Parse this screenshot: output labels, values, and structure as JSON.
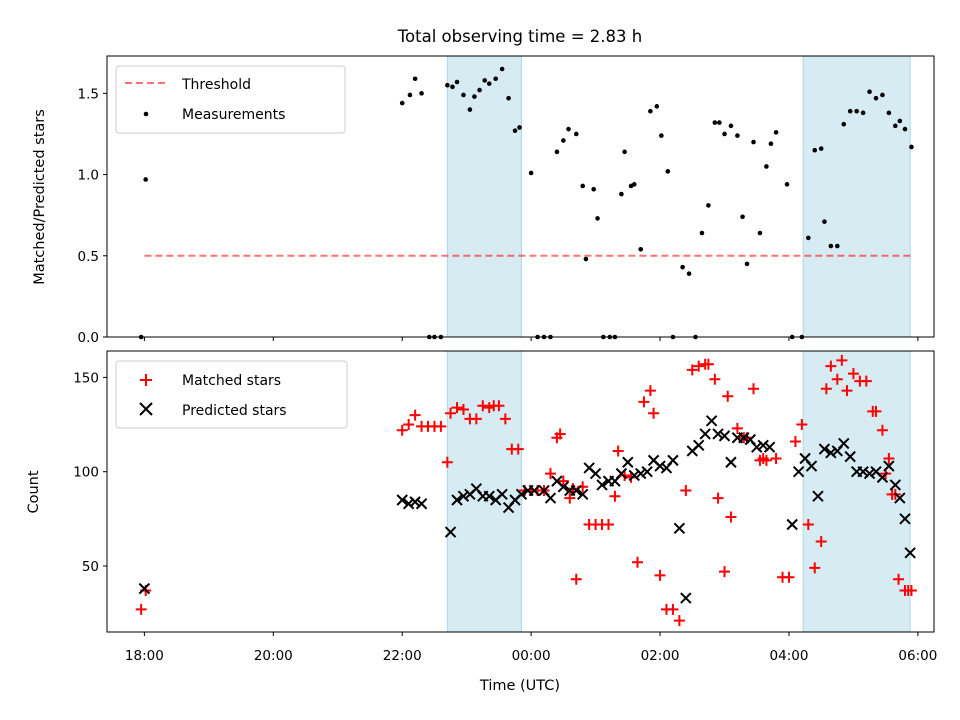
{
  "figure": {
    "title": "Total observing time = 2.83 h",
    "xlabel": "Time (UTC)",
    "x_tick_labels": [
      "18:00",
      "20:00",
      "22:00",
      "00:00",
      "02:00",
      "04:00",
      "06:00"
    ],
    "x_tick_hours": [
      0,
      2,
      4,
      6,
      8,
      10,
      12
    ],
    "x_unit_note": "hours since 18:00 UTC",
    "xlim_hours": [
      -0.58,
      12.25
    ],
    "shaded_spans_hours": [
      [
        4.7,
        5.85
      ],
      [
        10.22,
        11.88
      ]
    ],
    "shade_color": "#add8e6"
  },
  "chart_data": [
    {
      "type": "scatter",
      "ylabel": "Matched/Predicted stars",
      "ylim": [
        0,
        1.73
      ],
      "y_ticks": [
        0,
        0.5,
        1,
        1.5
      ],
      "y_tick_labels": [
        "0.0",
        "0.5",
        "1.0",
        "1.5"
      ],
      "legend": {
        "placement": "upper-left",
        "entries": [
          "Threshold",
          "Measurements"
        ]
      },
      "threshold": {
        "name": "Threshold",
        "value": 0.5,
        "x_range_hours": [
          0,
          11.9
        ],
        "color": "#ff0000",
        "style": "dashed"
      },
      "series": [
        {
          "name": "Measurements",
          "marker": "dot",
          "color": "#000000",
          "x_hours": [
            -0.05,
            0.02,
            4.0,
            4.12,
            4.2,
            4.3,
            4.42,
            4.5,
            4.6,
            4.7,
            4.78,
            4.85,
            4.95,
            5.05,
            5.12,
            5.2,
            5.28,
            5.35,
            5.45,
            5.55,
            5.65,
            5.75,
            5.82,
            6.0,
            6.1,
            6.2,
            6.3,
            6.4,
            6.5,
            6.58,
            6.7,
            6.8,
            6.85,
            6.97,
            7.03,
            7.12,
            7.22,
            7.3,
            7.4,
            7.45,
            7.55,
            7.6,
            7.7,
            7.85,
            7.95,
            8.02,
            8.12,
            8.2,
            8.35,
            8.45,
            8.55,
            8.65,
            8.75,
            8.85,
            8.92,
            9.0,
            9.1,
            9.2,
            9.28,
            9.35,
            9.45,
            9.55,
            9.65,
            9.72,
            9.8,
            9.97,
            10.05,
            10.2,
            10.3,
            10.4,
            10.5,
            10.55,
            10.65,
            10.75,
            10.85,
            10.95,
            11.05,
            11.15,
            11.25,
            11.35,
            11.45,
            11.55,
            11.65,
            11.72,
            11.8,
            11.9
          ],
          "y": [
            0.0,
            0.97,
            1.44,
            1.49,
            1.59,
            1.5,
            0.0,
            0.0,
            0.0,
            1.55,
            1.54,
            1.57,
            1.49,
            1.4,
            1.48,
            1.52,
            1.58,
            1.56,
            1.59,
            1.65,
            1.47,
            1.27,
            1.29,
            1.01,
            0.0,
            0.0,
            0.0,
            1.14,
            1.21,
            1.28,
            1.25,
            0.93,
            0.48,
            0.91,
            0.73,
            0.0,
            0.0,
            0.0,
            0.88,
            1.14,
            0.93,
            0.94,
            0.54,
            1.39,
            1.42,
            1.24,
            1.02,
            0.0,
            0.43,
            0.39,
            0.0,
            0.64,
            0.81,
            1.32,
            1.32,
            1.25,
            1.3,
            1.24,
            0.74,
            0.45,
            1.2,
            0.64,
            1.05,
            1.19,
            1.26,
            0.94,
            0.0,
            0.0,
            0.61,
            1.15,
            1.16,
            0.71,
            0.56,
            0.56,
            1.31,
            1.39,
            1.39,
            1.38,
            1.51,
            1.47,
            1.49,
            1.38,
            1.3,
            1.33,
            1.28,
            1.17
          ]
        }
      ]
    },
    {
      "type": "scatter",
      "xlabel": "Time (UTC)",
      "ylabel": "Count",
      "ylim": [
        15,
        164
      ],
      "y_ticks": [
        50,
        100,
        150
      ],
      "y_tick_labels": [
        "50",
        "100",
        "150"
      ],
      "legend": {
        "placement": "upper-left",
        "entries": [
          "Matched stars",
          "Predicted stars"
        ]
      },
      "series": [
        {
          "name": "Matched stars",
          "marker": "plus",
          "color": "#ff0000",
          "x_hours": [
            -0.05,
            0.02,
            4.0,
            4.1,
            4.2,
            4.3,
            4.4,
            4.5,
            4.6,
            4.7,
            4.75,
            4.85,
            4.95,
            5.05,
            5.15,
            5.25,
            5.35,
            5.42,
            5.5,
            5.6,
            5.7,
            5.8,
            5.9,
            6.0,
            6.1,
            6.2,
            6.3,
            6.4,
            6.45,
            6.5,
            6.6,
            6.65,
            6.7,
            6.8,
            6.9,
            7.0,
            7.1,
            7.2,
            7.3,
            7.35,
            7.45,
            7.55,
            7.65,
            7.75,
            7.85,
            7.9,
            8.0,
            8.1,
            8.2,
            8.3,
            8.4,
            8.5,
            8.6,
            8.7,
            8.75,
            8.85,
            8.9,
            9.0,
            9.05,
            9.1,
            9.2,
            9.3,
            9.35,
            9.45,
            9.55,
            9.6,
            9.65,
            9.8,
            9.9,
            10.0,
            10.1,
            10.2,
            10.3,
            10.4,
            10.5,
            10.58,
            10.65,
            10.75,
            10.82,
            10.9,
            11.0,
            11.1,
            11.2,
            11.3,
            11.35,
            11.45,
            11.5,
            11.55,
            11.6,
            11.65,
            11.7,
            11.8,
            11.85,
            11.9
          ],
          "y": [
            27,
            37,
            122,
            125,
            130,
            124,
            124,
            124,
            124,
            105,
            131,
            134,
            133,
            128,
            128,
            135,
            134,
            135,
            135,
            128,
            112,
            112,
            90,
            90,
            90,
            90,
            99,
            118,
            120,
            95,
            86,
            91,
            43,
            92,
            72,
            72,
            72,
            72,
            87,
            111,
            98,
            97,
            52,
            137,
            143,
            131,
            45,
            27,
            27,
            21,
            90,
            154,
            156,
            157,
            157,
            149,
            86,
            47,
            140,
            76,
            123,
            118,
            118,
            144,
            106,
            107,
            106,
            107,
            44,
            44,
            116,
            125,
            72,
            49,
            63,
            144,
            156,
            149,
            159,
            143,
            152,
            148,
            148,
            132,
            132,
            122,
            99,
            107,
            88,
            88,
            43,
            37,
            37,
            37
          ],
          "note": "approximate"
        },
        {
          "name": "Predicted stars",
          "marker": "x",
          "color": "#000000",
          "x_hours": [
            0.0,
            4.0,
            4.1,
            4.2,
            4.3,
            4.75,
            4.85,
            4.95,
            5.05,
            5.15,
            5.25,
            5.35,
            5.45,
            5.55,
            5.65,
            5.75,
            5.85,
            5.95,
            6.05,
            6.2,
            6.3,
            6.4,
            6.5,
            6.6,
            6.7,
            6.8,
            6.9,
            7.0,
            7.1,
            7.2,
            7.3,
            7.4,
            7.5,
            7.6,
            7.7,
            7.8,
            7.9,
            8.0,
            8.1,
            8.2,
            8.3,
            8.4,
            8.5,
            8.6,
            8.7,
            8.8,
            8.9,
            9.0,
            9.1,
            9.2,
            9.3,
            9.4,
            9.5,
            9.6,
            9.7,
            10.05,
            10.15,
            10.25,
            10.35,
            10.45,
            10.55,
            10.65,
            10.75,
            10.85,
            10.95,
            11.05,
            11.15,
            11.25,
            11.35,
            11.45,
            11.55,
            11.65,
            11.72,
            11.8,
            11.88
          ],
          "y": [
            38,
            85,
            83,
            84,
            83,
            68,
            85,
            87,
            88,
            91,
            87,
            87,
            85,
            88,
            81,
            85,
            88,
            90,
            90,
            90,
            86,
            95,
            92,
            90,
            90,
            88,
            102,
            99,
            93,
            95,
            95,
            99,
            105,
            98,
            99,
            100,
            106,
            103,
            102,
            106,
            70,
            33,
            111,
            114,
            120,
            127,
            120,
            119,
            105,
            118,
            118,
            117,
            113,
            114,
            113,
            72,
            100,
            107,
            103,
            87,
            112,
            110,
            111,
            115,
            108,
            100,
            100,
            99,
            100,
            97,
            103,
            93,
            86,
            75,
            57
          ],
          "note": "approximate"
        }
      ]
    }
  ]
}
